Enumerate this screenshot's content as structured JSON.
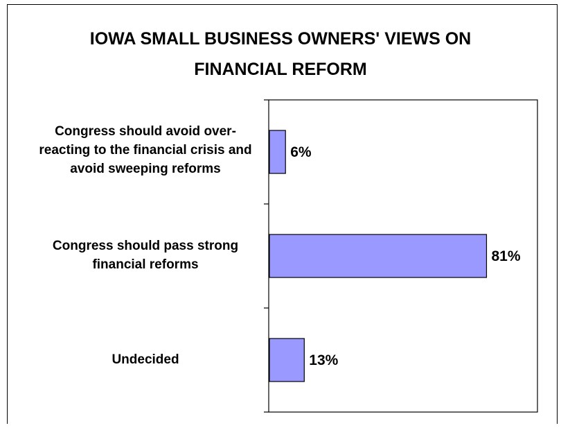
{
  "chart_data": {
    "type": "bar",
    "orientation": "horizontal",
    "title": "IOWA SMALL BUSINESS OWNERS' VIEWS ON\nFINANCIAL REFORM",
    "categories": [
      "Congress should avoid over-\nreacting to the financial crisis and\navoid sweeping reforms",
      "Congress should pass strong\nfinancial reforms",
      "Undecided"
    ],
    "values": [
      6,
      81,
      13
    ],
    "value_labels": [
      "6%",
      "81%",
      "13%"
    ],
    "xlim": [
      0,
      100
    ],
    "bar_color": "#9999ff",
    "grid": false,
    "legend": "none"
  }
}
